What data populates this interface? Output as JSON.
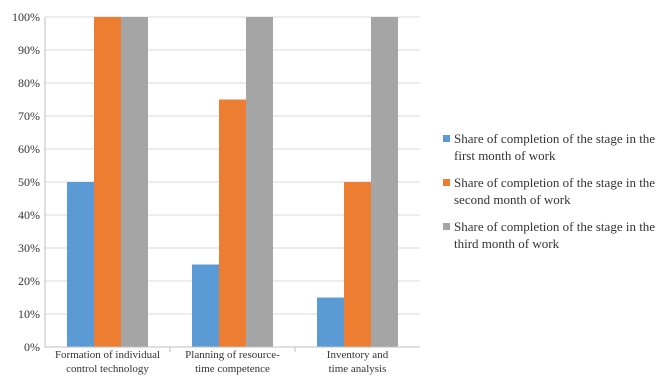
{
  "chart_data": {
    "type": "bar",
    "title": "",
    "xlabel": "",
    "ylabel": "",
    "ylim": [
      0,
      100
    ],
    "y_tick_values": [
      0,
      10,
      20,
      30,
      40,
      50,
      60,
      70,
      80,
      90,
      100
    ],
    "y_tick_labels": [
      "0%",
      "10%",
      "20%",
      "30%",
      "40%",
      "50%",
      "60%",
      "70%",
      "80%",
      "90%",
      "100%"
    ],
    "grid": true,
    "legend_position": "right",
    "categories": [
      [
        "Formation of individual",
        "control technology"
      ],
      [
        "Planning of resource-",
        "time competence"
      ],
      [
        "Inventory and",
        "time analysis"
      ]
    ],
    "series": [
      {
        "name": [
          "Share of completion of the stage in the",
          "first month of work"
        ],
        "color": "#5B9BD5",
        "values": [
          50,
          25,
          15
        ]
      },
      {
        "name": [
          "Share of completion of the stage in the",
          "second month of work"
        ],
        "color": "#ED7D31",
        "values": [
          100,
          75,
          50
        ]
      },
      {
        "name": [
          "Share of completion of the stage in the",
          "third month of work"
        ],
        "color": "#A5A5A5",
        "values": [
          100,
          100,
          100
        ]
      }
    ]
  }
}
